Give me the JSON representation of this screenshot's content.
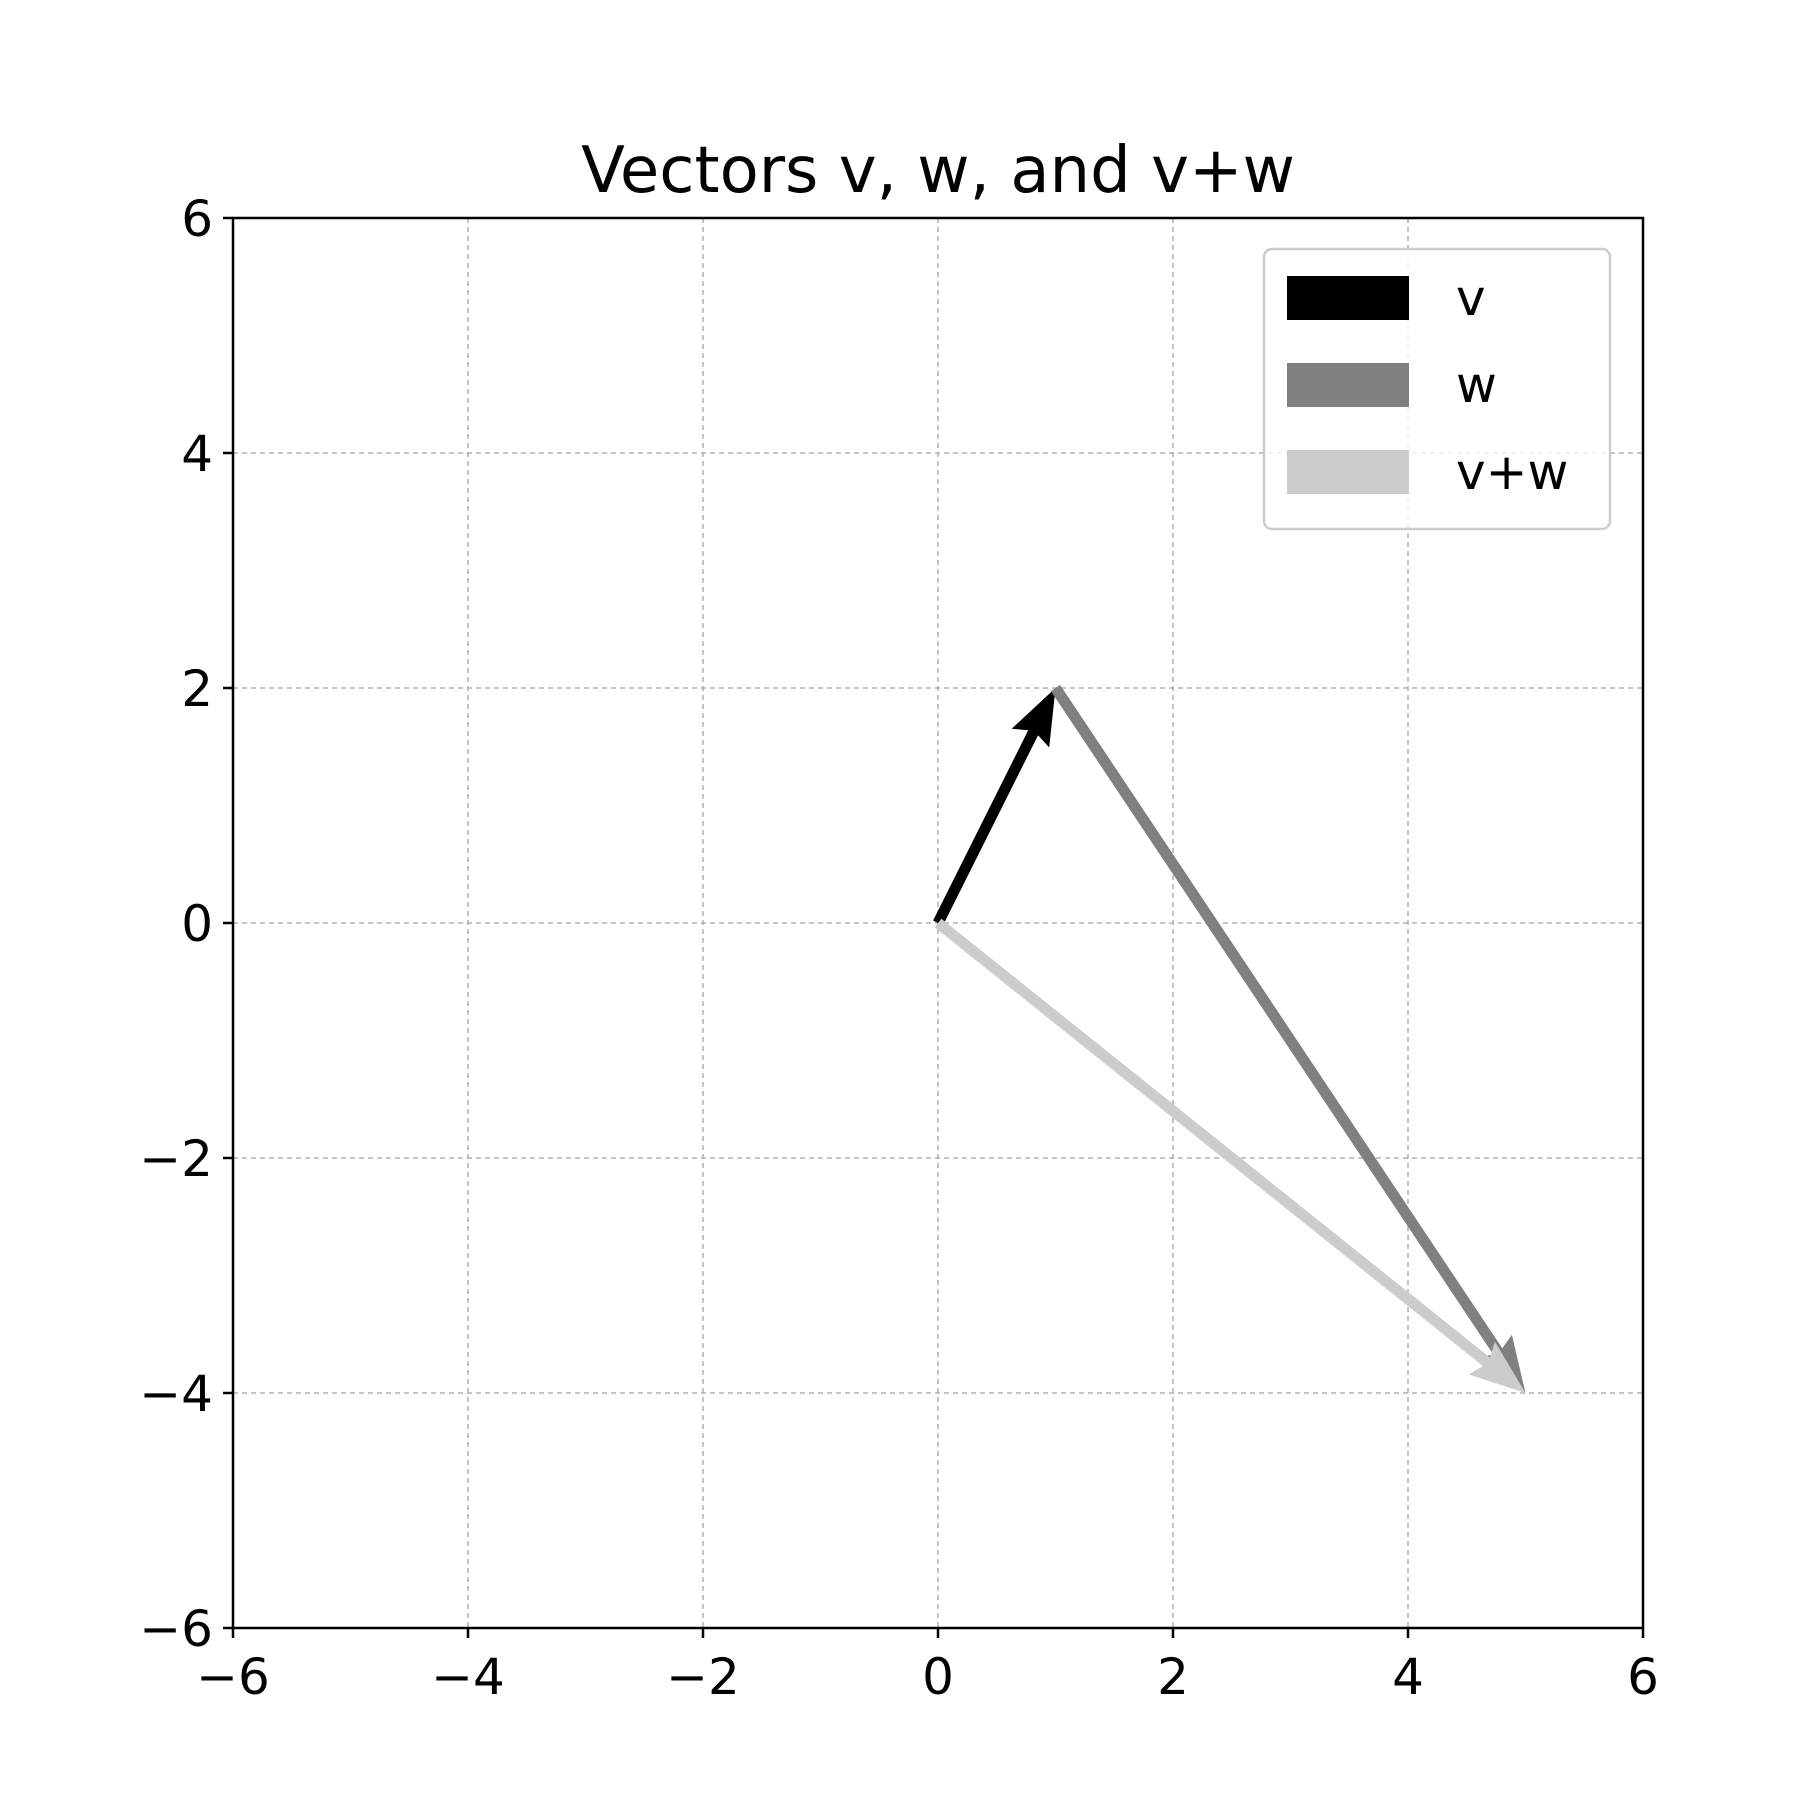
{
  "chart_data": {
    "type": "quiver",
    "title": "Vectors v, w, and v+w",
    "xlabel": "",
    "ylabel": "",
    "xlim": [
      -6,
      6
    ],
    "ylim": [
      -6,
      6
    ],
    "xticks": [
      -6,
      -4,
      -2,
      0,
      2,
      4,
      6
    ],
    "yticks": [
      -6,
      -4,
      -2,
      0,
      2,
      4,
      6
    ],
    "xtick_labels": [
      "−6",
      "−4",
      "−2",
      "0",
      "2",
      "4",
      "6"
    ],
    "ytick_labels": [
      "−6",
      "−4",
      "−2",
      "0",
      "2",
      "4",
      "6"
    ],
    "grid": true,
    "grid_style": "dashed",
    "legend_position": "top-right",
    "series": [
      {
        "name": "v",
        "color": "#000000",
        "start": [
          0,
          0
        ],
        "end": [
          1,
          2
        ]
      },
      {
        "name": "w",
        "color": "#808080",
        "start": [
          1,
          2
        ],
        "end": [
          5,
          -4
        ]
      },
      {
        "name": "v+w",
        "color": "#cccccc",
        "start": [
          0,
          0
        ],
        "end": [
          5,
          -4
        ]
      }
    ]
  }
}
